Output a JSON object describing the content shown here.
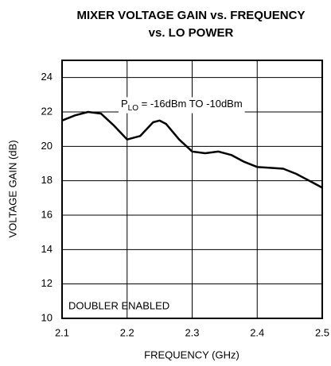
{
  "chart_data": {
    "type": "line",
    "title": [
      "MIXER VOLTAGE GAIN vs. FREQUENCY",
      "vs. LO POWER"
    ],
    "x_label": "FREQUENCY (GHz)",
    "y_label": "VOLTAGE GAIN (dB)",
    "annotations": {
      "plo": {
        "prefix": "P",
        "subscript": "LO",
        "text": " = -16dBm TO -10dBm"
      },
      "doubler": "DOUBLER ENABLED"
    },
    "x": [
      2.1,
      2.12,
      2.14,
      2.16,
      2.18,
      2.2,
      2.22,
      2.24,
      2.25,
      2.26,
      2.28,
      2.3,
      2.32,
      2.34,
      2.36,
      2.38,
      2.4,
      2.42,
      2.44,
      2.46,
      2.48,
      2.5
    ],
    "series": [
      {
        "color": "#000000",
        "values": [
          21.5,
          21.8,
          22.0,
          21.9,
          21.2,
          20.4,
          20.6,
          21.4,
          21.5,
          21.3,
          20.4,
          19.7,
          19.6,
          19.7,
          19.5,
          19.1,
          18.8,
          18.75,
          18.7,
          18.4,
          18.0,
          17.6
        ]
      }
    ],
    "xlim": [
      2.1,
      2.5
    ],
    "xticks": [
      2.1,
      2.2,
      2.3,
      2.4,
      2.5
    ],
    "ylim": [
      10,
      25
    ],
    "yticks": [
      10,
      12,
      14,
      16,
      18,
      20,
      22,
      24
    ],
    "grid": true
  }
}
